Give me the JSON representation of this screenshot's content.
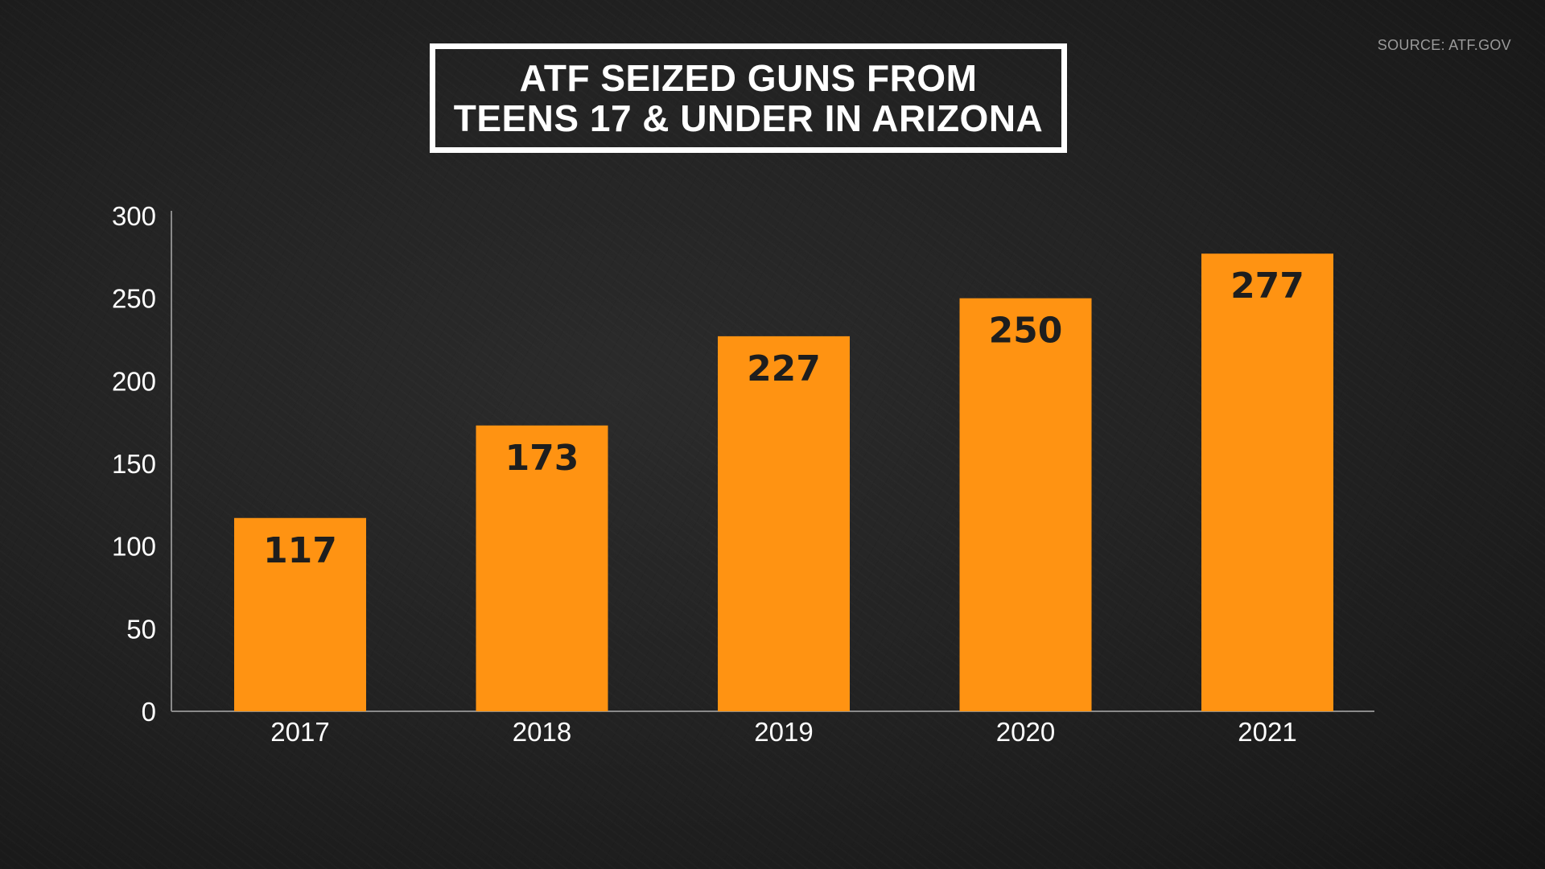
{
  "source": "SOURCE: ATF.GOV",
  "title_lines": [
    "ATF SEIZED GUNS FROM",
    "TEENS 17 & UNDER IN ARIZONA"
  ],
  "colors": {
    "bar": "#ff9312",
    "axis": "#8a8a8a",
    "background": "#222222",
    "label": "#1e1e1e"
  },
  "chart_data": {
    "type": "bar",
    "title": "ATF SEIZED GUNS FROM TEENS 17 & UNDER IN ARIZONA",
    "categories": [
      "2017",
      "2018",
      "2019",
      "2020",
      "2021"
    ],
    "values": [
      117,
      173,
      227,
      250,
      277
    ],
    "data_labels": [
      "117",
      "173",
      "227",
      "250",
      "277"
    ],
    "xlabel": "",
    "ylabel": "",
    "ylim": [
      0,
      300
    ],
    "yticks": [
      0,
      50,
      100,
      150,
      200,
      250,
      300
    ],
    "ytick_labels": [
      "0",
      "50",
      "100",
      "150",
      "200",
      "250",
      "300"
    ],
    "grid": false,
    "legend": "none"
  }
}
